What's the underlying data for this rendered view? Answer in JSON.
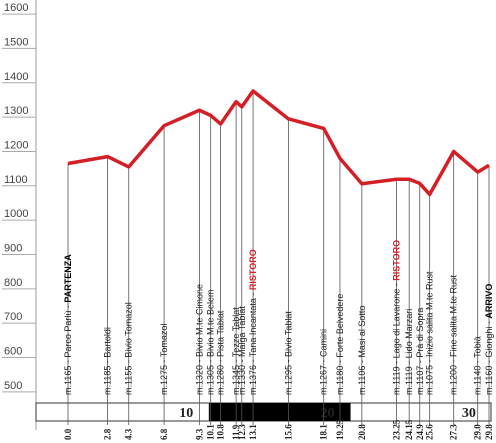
{
  "chart_data": {
    "type": "line",
    "x": [
      0,
      2.8,
      4.3,
      6.8,
      9.3,
      10.1,
      10.8,
      11.9,
      12.3,
      13.1,
      15.6,
      18.1,
      19.25,
      20.8,
      23.25,
      24.15,
      24.9,
      25.6,
      27.3,
      29.0,
      29.8
    ],
    "xticks": [
      {
        "value": 0,
        "label": "0.0"
      },
      2.8,
      4.3,
      6.8,
      9.3,
      10.1,
      10.8,
      11.9,
      12.3,
      13.1,
      15.6,
      18.1,
      19.25,
      20.8,
      23.25,
      24.15,
      24.9,
      25.6,
      27.3,
      {
        "value": 29.0,
        "label": "29.0"
      },
      29.8
    ],
    "series": [
      {
        "color": "#d41f26",
        "values": [
          1165,
          1185,
          1155,
          1275,
          1320,
          1305,
          1280,
          1345,
          1330,
          1376,
          1295,
          1267,
          1180,
          1106,
          1119,
          1119,
          1107,
          1075,
          1200,
          1140,
          1160
        ]
      }
    ],
    "stations": [
      {
        "label": "m.1165 - Parco Parlù - ",
        "note": "PARTENZA",
        "note_color": "#000"
      },
      {
        "label": "m.1185 - Bartoldi"
      },
      {
        "label": "m.1155 - Bivio Tomazol"
      },
      {
        "label": "m.1275 - Tomazol"
      },
      {
        "label": "m.1320 - Bivio M.te Cimone"
      },
      {
        "label": "m.1305 - Bivio M.te Belem"
      },
      {
        "label": "m.1280 - Pista Tablat"
      },
      {
        "label": "m.1345 - Tezze Tablat"
      },
      {
        "label": "m.1330 - Malga Tablat"
      },
      {
        "label": "m.1376 - Tana Incantata - ",
        "note": "RISTORO",
        "note_color": "#d41f26"
      },
      {
        "label": "m.1295 - Bivio Tablat"
      },
      {
        "label": "m.1267 - Camini"
      },
      {
        "label": "m.1180 - Forte Belvedere"
      },
      {
        "label": "m.1106 - Masi al Sotto"
      },
      {
        "label": "m.1119 - Lago di Lavarone - ",
        "note": "RISTORO",
        "note_color": "#d41f26"
      },
      {
        "label": "m.1119 - Lido Marzari"
      },
      {
        "label": "m.1107 - Prà di Sopra"
      },
      {
        "label": "m.1075 - Inizio salita M.te Rust"
      },
      {
        "label": "m.1200 - Fine salita M.te Rust"
      },
      {
        "label": "m.1140 - Tobià"
      },
      {
        "label": "m.1160 - Gionghi - ",
        "note": "ARRIVO",
        "note_color": "#000"
      }
    ],
    "scale_ticks": [
      10,
      20,
      30
    ],
    "xlim": [
      0,
      29.8
    ],
    "ylim": [
      389,
      1641
    ],
    "yticks": [
      500,
      600,
      700,
      800,
      900,
      1000,
      1100,
      1200,
      1300,
      1400,
      1500,
      1600
    ]
  }
}
